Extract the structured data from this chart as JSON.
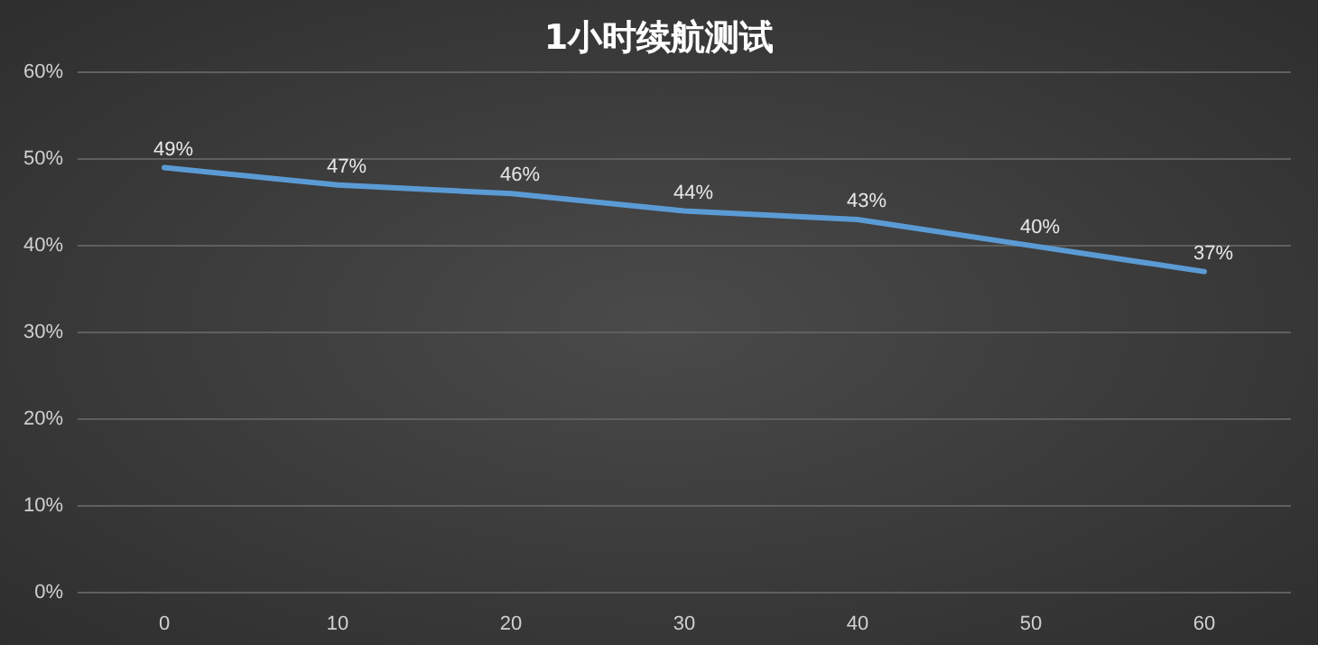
{
  "chart_data": {
    "type": "line",
    "title": "1小时续航测试",
    "categories": [
      "0",
      "10",
      "20",
      "30",
      "40",
      "50",
      "60"
    ],
    "series": [
      {
        "color": "#5b9bd5",
        "values": [
          49,
          47,
          46,
          44,
          43,
          40,
          37
        ],
        "value_labels": [
          "49%",
          "47%",
          "46%",
          "44%",
          "43%",
          "40%",
          "37%"
        ]
      }
    ],
    "ylim": [
      0,
      60
    ],
    "yticks": [
      {
        "value": 0,
        "label": "0%"
      },
      {
        "value": 10,
        "label": "10%"
      },
      {
        "value": 20,
        "label": "20%"
      },
      {
        "value": 30,
        "label": "30%"
      },
      {
        "value": 40,
        "label": "40%"
      },
      {
        "value": 50,
        "label": "50%"
      },
      {
        "value": 60,
        "label": "60%"
      }
    ],
    "grid": "y",
    "marker": "none",
    "line_style": "solid"
  }
}
